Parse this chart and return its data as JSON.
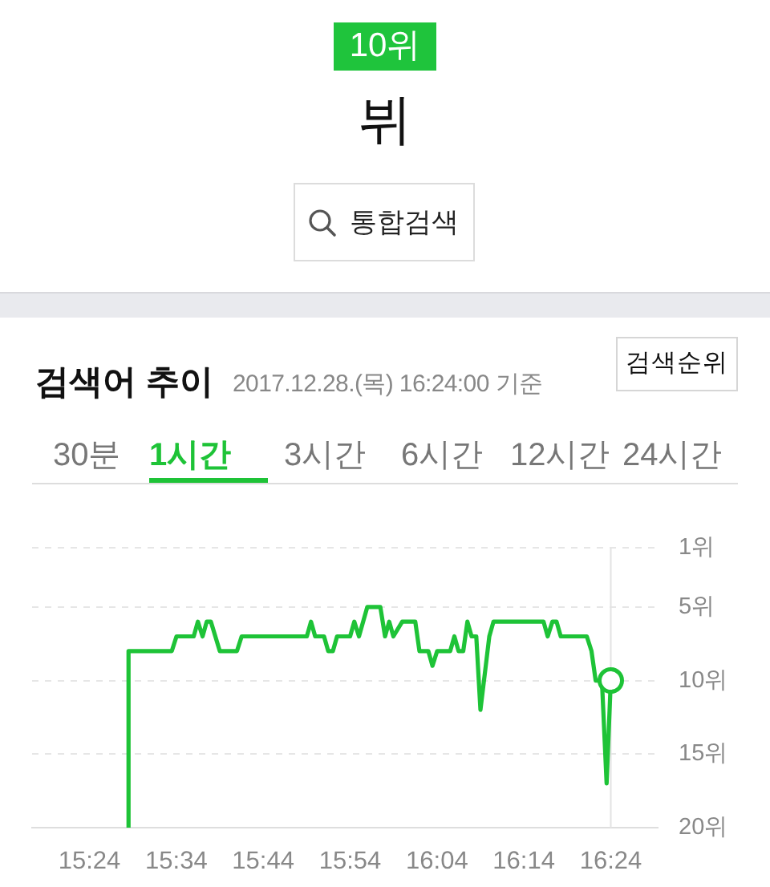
{
  "chart_data": {
    "type": "line",
    "title": "검색어 추이",
    "subtitle": "2017.12.28.(목) 16:24:00 기준",
    "x": [
      15.475,
      15.475,
      15.558,
      15.567,
      15.6,
      15.608,
      15.617,
      15.625,
      15.633,
      15.65,
      15.683,
      15.692,
      15.817,
      15.825,
      15.833,
      15.85,
      15.858,
      15.867,
      15.875,
      15.9,
      15.908,
      15.917,
      15.933,
      15.958,
      15.967,
      15.975,
      15.983,
      16.0,
      16.025,
      16.033,
      16.05,
      16.058,
      16.067,
      16.092,
      16.1,
      16.108,
      16.117,
      16.125,
      16.133,
      16.142,
      16.15,
      16.167,
      16.175,
      16.271,
      16.279,
      16.288,
      16.296,
      16.304,
      16.354,
      16.363,
      16.371,
      16.383,
      16.392,
      16.4
    ],
    "series": [
      {
        "type": "scatter",
        "marker": "circle",
        "color": "#1ec337",
        "x": [
          16.4
        ],
        "values": [
          10
        ]
      },
      {
        "color": "#1ec337",
        "values": [
          20,
          8,
          8,
          7,
          7,
          6,
          7,
          6,
          6,
          8,
          8,
          7,
          7,
          6,
          7,
          7,
          8,
          8,
          7,
          7,
          6,
          7,
          5,
          5,
          7,
          6,
          7,
          6,
          6,
          8,
          8,
          9,
          8,
          8,
          7,
          8,
          8,
          6,
          7,
          7,
          12,
          7,
          6,
          6,
          7,
          6,
          6,
          7,
          7,
          8,
          10,
          10,
          17,
          10
        ]
      }
    ],
    "xlim": [
      15.29,
      16.49
    ],
    "xticks": [
      {
        "value": 15.4,
        "label": "15:24"
      },
      {
        "value": 15.5667,
        "label": "15:34"
      },
      {
        "value": 15.7333,
        "label": "15:44"
      },
      {
        "value": 15.9,
        "label": "15:54"
      },
      {
        "value": 16.0667,
        "label": "16:04"
      },
      {
        "value": 16.2333,
        "label": "16:14"
      },
      {
        "value": 16.4,
        "label": "16:24"
      }
    ],
    "ylim": [
      20,
      1
    ],
    "yticks": [
      {
        "value": 1,
        "label": "1위"
      },
      {
        "value": 5,
        "label": "5위"
      },
      {
        "value": 10,
        "label": "10위"
      },
      {
        "value": 15,
        "label": "15위"
      },
      {
        "value": 20,
        "label": "20위"
      }
    ],
    "grid": "y",
    "marker": "none",
    "ref_lines": [
      {
        "axis": "x",
        "value": 16.4,
        "color": "#e3e3e3"
      }
    ],
    "annotations": [
      "10위",
      "뷔",
      "통합검색",
      "검색순위",
      "30분",
      "1시간",
      "3시간",
      "6시간",
      "12시간",
      "24시간"
    ]
  }
}
